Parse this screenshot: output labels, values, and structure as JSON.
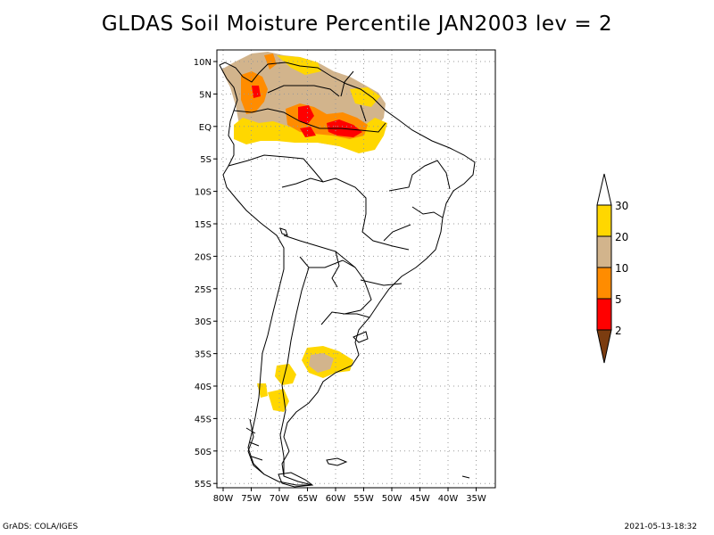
{
  "title": "GLDAS Soil Moisture Percentile JAN2003 lev = 2",
  "axes": {
    "lat_labels": [
      "10N",
      "5N",
      "EQ",
      "5S",
      "10S",
      "15S",
      "20S",
      "25S",
      "30S",
      "35S",
      "40S",
      "45S",
      "50S",
      "55S"
    ],
    "lon_labels": [
      "80W",
      "75W",
      "70W",
      "65W",
      "60W",
      "55W",
      "50W",
      "45W",
      "40W",
      "35W"
    ]
  },
  "colorbar": {
    "labels": [
      "2",
      "5",
      "10",
      "20",
      "30"
    ],
    "colors": {
      "below_2": "#7b3c10",
      "2_5": "#ff0000",
      "5_10": "#ff8c00",
      "10_20": "#d2b48c",
      "20_30": "#ffd700",
      "above_30": "#ffffff"
    }
  },
  "footer": {
    "left": "GrADS: COLA/IGES",
    "right": "2021-05-13-18:32"
  },
  "colors": {
    "frame": "#000000",
    "grid": "#999999",
    "coast": "#000000"
  }
}
